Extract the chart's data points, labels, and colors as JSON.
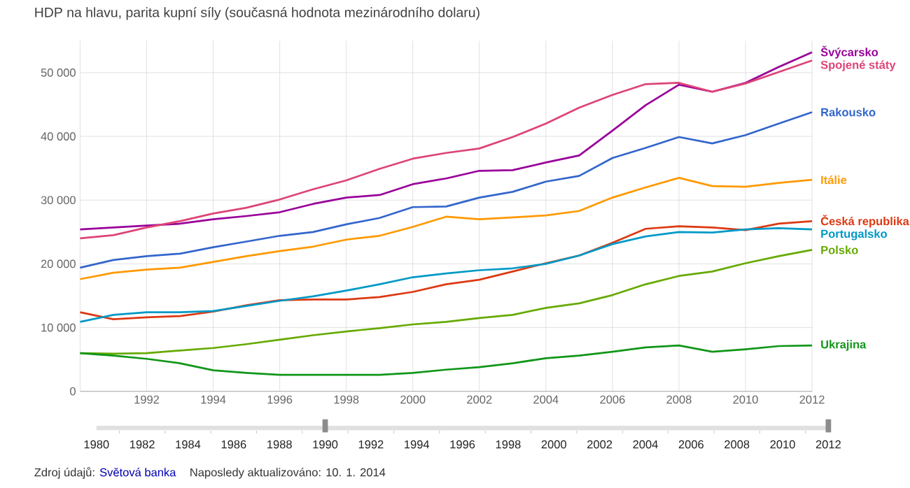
{
  "chart_data": {
    "type": "line",
    "title": "HDP na hlavu, parita kupní síly (současná hodnota mezinárodního dolaru)",
    "x": [
      1990,
      1991,
      1992,
      1993,
      1994,
      1995,
      1996,
      1997,
      1998,
      1999,
      2000,
      2001,
      2002,
      2003,
      2004,
      2005,
      2006,
      2007,
      2008,
      2009,
      2010,
      2011,
      2012
    ],
    "series": [
      {
        "name": "Švýcarsko",
        "color": "#990099",
        "values": [
          25400,
          25700,
          26000,
          26300,
          27000,
          27500,
          28100,
          29400,
          30400,
          30800,
          32500,
          33400,
          34600,
          34700,
          35900,
          37000,
          40900,
          44900,
          48100,
          47000,
          48400,
          50900,
          53200
        ]
      },
      {
        "name": "Spojené státy",
        "color": "#dd4477",
        "values": [
          24000,
          24500,
          25700,
          26700,
          27900,
          28800,
          30100,
          31700,
          33100,
          34900,
          36500,
          37400,
          38100,
          39900,
          42000,
          44500,
          46500,
          48200,
          48400,
          47000,
          48300,
          50100,
          51900
        ]
      },
      {
        "name": "Rakousko",
        "color": "#3366cc",
        "values": [
          19400,
          20600,
          21200,
          21600,
          22600,
          23500,
          24400,
          25000,
          26200,
          27200,
          28900,
          29000,
          30400,
          31300,
          32900,
          33800,
          36600,
          38200,
          39900,
          38900,
          40200,
          42000,
          43800
        ]
      },
      {
        "name": "Itálie",
        "color": "#ff9900",
        "values": [
          17600,
          18600,
          19100,
          19400,
          20300,
          21200,
          22000,
          22700,
          23800,
          24400,
          25800,
          27400,
          27000,
          27300,
          27600,
          28300,
          30400,
          32000,
          33500,
          32200,
          32100,
          32700,
          33200
        ]
      },
      {
        "name": "Česká republika",
        "color": "#dc3912",
        "values": [
          12400,
          11300,
          11600,
          11800,
          12500,
          13500,
          14300,
          14400,
          14400,
          14800,
          15600,
          16800,
          17500,
          18800,
          20100,
          21300,
          23300,
          25500,
          25900,
          25700,
          25300,
          26300,
          26700
        ]
      },
      {
        "name": "Portugalsko",
        "color": "#0099c6",
        "values": [
          10900,
          12000,
          12400,
          12400,
          12600,
          13400,
          14200,
          14900,
          15800,
          16800,
          17900,
          18500,
          19000,
          19300,
          20000,
          21300,
          23100,
          24300,
          25000,
          24900,
          25400,
          25600,
          25400
        ]
      },
      {
        "name": "Polsko",
        "color": "#66aa00",
        "values": [
          6000,
          5900,
          6000,
          6400,
          6800,
          7400,
          8100,
          8800,
          9400,
          9900,
          10500,
          10900,
          11500,
          12000,
          13100,
          13800,
          15100,
          16800,
          18100,
          18800,
          20100,
          21200,
          22200
        ]
      },
      {
        "name": "Ukrajina",
        "color": "#109618",
        "values": [
          6000,
          5600,
          5100,
          4400,
          3300,
          2900,
          2600,
          2600,
          2600,
          2600,
          2900,
          3400,
          3800,
          4400,
          5200,
          5600,
          6200,
          6900,
          7200,
          6200,
          6600,
          7100,
          7200
        ]
      }
    ],
    "xlim": [
      1990,
      2012
    ],
    "xticks": [
      1992,
      1994,
      1996,
      1998,
      2000,
      2002,
      2004,
      2006,
      2008,
      2010,
      2012
    ],
    "ylim": [
      0,
      55000
    ],
    "yticks": [
      0,
      {
        "value": 10000,
        "label": "10 000"
      },
      {
        "value": 20000,
        "label": "20 000"
      },
      {
        "value": 30000,
        "label": "30 000"
      },
      {
        "value": 40000,
        "label": "40 000"
      },
      {
        "value": 50000,
        "label": "50 000"
      }
    ],
    "x2lim": [
      1980,
      2012
    ],
    "x2ticks": [
      1980,
      1982,
      1984,
      1986,
      1988,
      1990,
      1992,
      1994,
      1996,
      1998,
      2000,
      2002,
      2004,
      2006,
      2008,
      2010,
      2012
    ],
    "grid": true,
    "legend": false,
    "marker": "none",
    "line_style": "solid",
    "annotations": [
      "Zdroj údajů:",
      "Světová banka",
      "Naposledy aktualizováno: 10. 1. 2014"
    ]
  }
}
